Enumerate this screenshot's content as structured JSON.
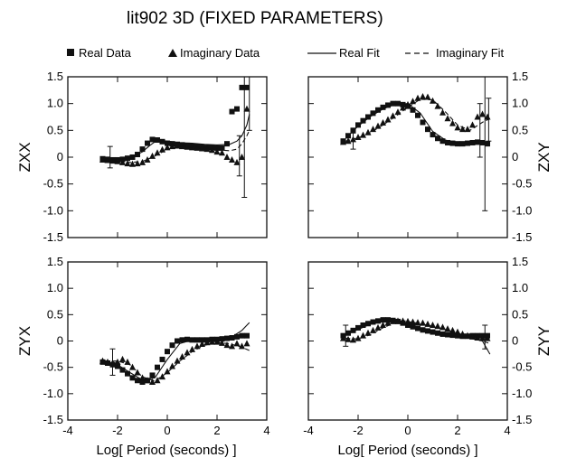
{
  "figure": {
    "title": "lit902 3D (FIXED PARAMETERS)",
    "legend": {
      "real_data": "Real Data",
      "imag_data": "Imaginary Data",
      "real_fit": "Real Fit",
      "imag_fit": "Imaginary Fit"
    },
    "xlabel": "Log[ Period (seconds) ]",
    "xticks": [
      -4,
      -2,
      0,
      2,
      4
    ],
    "yticks": [
      -1.5,
      -1.0,
      -0.5,
      0,
      0.5,
      1.0,
      1.5
    ],
    "xlim": [
      -4,
      4
    ],
    "ylim": [
      -1.5,
      1.5
    ]
  },
  "chart_data": [
    {
      "type": "scatter",
      "panel": "top-left",
      "ylabel": "ZXX",
      "series": [
        {
          "name": "Real Data",
          "marker": "square",
          "x": [
            -2.6,
            -2.4,
            -2.2,
            -2.0,
            -1.8,
            -1.6,
            -1.4,
            -1.2,
            -1.0,
            -0.8,
            -0.6,
            -0.4,
            -0.2,
            0.0,
            0.2,
            0.4,
            0.6,
            0.8,
            1.0,
            1.2,
            1.4,
            1.6,
            1.8,
            2.0,
            2.2,
            2.4,
            2.6,
            2.8,
            3.0,
            3.2
          ],
          "y": [
            -0.03,
            -0.04,
            -0.05,
            -0.05,
            -0.04,
            -0.02,
            0.0,
            0.05,
            0.15,
            0.26,
            0.33,
            0.32,
            0.29,
            0.26,
            0.25,
            0.24,
            0.23,
            0.22,
            0.21,
            0.2,
            0.19,
            0.18,
            0.18,
            0.17,
            0.17,
            0.25,
            0.85,
            0.9,
            1.3,
            1.3
          ]
        },
        {
          "name": "Imaginary Data",
          "marker": "triangle",
          "x": [
            -2.6,
            -2.4,
            -2.2,
            -2.0,
            -1.8,
            -1.6,
            -1.4,
            -1.2,
            -1.0,
            -0.8,
            -0.6,
            -0.4,
            -0.2,
            0.0,
            0.2,
            0.4,
            0.6,
            0.8,
            1.0,
            1.2,
            1.4,
            1.6,
            1.8,
            2.0,
            2.2,
            2.4,
            2.6,
            2.8,
            3.0,
            3.2
          ],
          "y": [
            -0.05,
            -0.06,
            -0.07,
            -0.08,
            -0.1,
            -0.12,
            -0.13,
            -0.12,
            -0.1,
            -0.05,
            0.02,
            0.08,
            0.14,
            0.18,
            0.2,
            0.21,
            0.2,
            0.19,
            0.18,
            0.17,
            0.16,
            0.15,
            0.13,
            0.1,
            0.08,
            0.0,
            -0.05,
            -0.1,
            0.0,
            0.9
          ]
        },
        {
          "name": "Real Fit",
          "line": "solid",
          "x": [
            -2.5,
            -2.0,
            -1.5,
            -1.0,
            -0.7,
            -0.4,
            0.0,
            0.5,
            1.0,
            1.5,
            2.0,
            2.5,
            2.8,
            3.0,
            3.2,
            3.3
          ],
          "y": [
            -0.02,
            -0.04,
            -0.02,
            0.1,
            0.22,
            0.32,
            0.3,
            0.27,
            0.26,
            0.24,
            0.23,
            0.24,
            0.3,
            0.4,
            0.6,
            0.8
          ]
        },
        {
          "name": "Imaginary Fit",
          "line": "dashed",
          "x": [
            -2.5,
            -2.0,
            -1.5,
            -1.0,
            -0.5,
            0.0,
            0.5,
            1.0,
            1.5,
            2.0,
            2.5,
            2.8,
            3.0,
            3.2,
            3.3
          ],
          "y": [
            -0.05,
            -0.07,
            -0.1,
            -0.08,
            0.02,
            0.15,
            0.2,
            0.19,
            0.17,
            0.14,
            0.12,
            0.15,
            0.25,
            0.4,
            0.5
          ]
        }
      ],
      "error_bars": [
        {
          "x": -2.3,
          "y": -0.05,
          "low": -0.2,
          "high": 0.2
        },
        {
          "x": 2.9,
          "y": 0.05,
          "low": -0.35,
          "high": 0.4
        },
        {
          "x": 3.1,
          "y": 0.5,
          "low": -0.75,
          "high": 1.5
        },
        {
          "x": 3.3,
          "y": 1.1,
          "low": 0.5,
          "high": 1.5
        }
      ]
    },
    {
      "type": "scatter",
      "panel": "top-right",
      "ylabel": "ZXY",
      "series": [
        {
          "name": "Real Data",
          "marker": "square",
          "x": [
            -2.6,
            -2.4,
            -2.2,
            -2.0,
            -1.8,
            -1.6,
            -1.4,
            -1.2,
            -1.0,
            -0.8,
            -0.6,
            -0.4,
            -0.2,
            0.0,
            0.2,
            0.4,
            0.6,
            0.8,
            1.0,
            1.2,
            1.4,
            1.6,
            1.8,
            2.0,
            2.2,
            2.4,
            2.6,
            2.8,
            3.0,
            3.2
          ],
          "y": [
            0.3,
            0.4,
            0.5,
            0.6,
            0.68,
            0.75,
            0.82,
            0.88,
            0.93,
            0.97,
            1.0,
            1.0,
            0.98,
            0.95,
            0.88,
            0.78,
            0.65,
            0.52,
            0.42,
            0.35,
            0.3,
            0.27,
            0.26,
            0.25,
            0.25,
            0.26,
            0.27,
            0.28,
            0.27,
            0.25
          ]
        },
        {
          "name": "Imaginary Data",
          "marker": "triangle",
          "x": [
            -2.6,
            -2.4,
            -2.2,
            -2.0,
            -1.8,
            -1.6,
            -1.4,
            -1.2,
            -1.0,
            -0.8,
            -0.6,
            -0.4,
            -0.2,
            0.0,
            0.2,
            0.4,
            0.6,
            0.8,
            1.0,
            1.2,
            1.4,
            1.6,
            1.8,
            2.0,
            2.2,
            2.4,
            2.6,
            2.8,
            3.0,
            3.2
          ],
          "y": [
            0.28,
            0.3,
            0.33,
            0.37,
            0.41,
            0.46,
            0.52,
            0.58,
            0.64,
            0.7,
            0.77,
            0.84,
            0.92,
            0.98,
            1.04,
            1.1,
            1.13,
            1.12,
            1.05,
            0.95,
            0.83,
            0.72,
            0.63,
            0.55,
            0.52,
            0.52,
            0.6,
            0.75,
            0.8,
            0.75
          ]
        },
        {
          "name": "Real Fit",
          "line": "solid",
          "x": [
            -2.5,
            -2.0,
            -1.5,
            -1.0,
            -0.5,
            0.0,
            0.5,
            1.0,
            1.5,
            2.0,
            2.5,
            3.0,
            3.3
          ],
          "y": [
            0.35,
            0.58,
            0.76,
            0.9,
            0.99,
            1.0,
            0.82,
            0.48,
            0.32,
            0.27,
            0.27,
            0.28,
            0.27
          ]
        },
        {
          "name": "Imaginary Fit",
          "line": "dashed",
          "x": [
            -2.5,
            -2.0,
            -1.5,
            -1.0,
            -0.5,
            0.0,
            0.5,
            1.0,
            1.5,
            2.0,
            2.5,
            3.0,
            3.3
          ],
          "y": [
            0.3,
            0.36,
            0.46,
            0.6,
            0.76,
            0.93,
            1.08,
            1.07,
            0.85,
            0.6,
            0.5,
            0.65,
            0.72
          ]
        }
      ],
      "error_bars": [
        {
          "x": -2.2,
          "y": 0.3,
          "low": 0.15,
          "high": 0.45
        },
        {
          "x": 2.9,
          "y": 0.6,
          "low": 0.0,
          "high": 1.0
        },
        {
          "x": 3.1,
          "y": 0.5,
          "low": -1.0,
          "high": 1.5
        },
        {
          "x": 3.25,
          "y": 0.75,
          "low": 0.3,
          "high": 1.1
        }
      ]
    },
    {
      "type": "scatter",
      "panel": "bottom-left",
      "ylabel": "ZYX",
      "series": [
        {
          "name": "Real Data",
          "marker": "square",
          "x": [
            -2.6,
            -2.4,
            -2.2,
            -2.0,
            -1.8,
            -1.6,
            -1.4,
            -1.2,
            -1.0,
            -0.8,
            -0.6,
            -0.4,
            -0.2,
            0.0,
            0.2,
            0.4,
            0.6,
            0.8,
            1.0,
            1.2,
            1.4,
            1.6,
            1.8,
            2.0,
            2.2,
            2.4,
            2.6,
            2.8,
            3.0,
            3.2
          ],
          "y": [
            -0.4,
            -0.42,
            -0.45,
            -0.48,
            -0.55,
            -0.62,
            -0.7,
            -0.75,
            -0.78,
            -0.75,
            -0.65,
            -0.5,
            -0.35,
            -0.2,
            -0.08,
            0.0,
            0.02,
            0.03,
            0.02,
            0.02,
            0.02,
            0.02,
            0.03,
            0.03,
            0.04,
            0.05,
            0.06,
            0.08,
            0.1,
            0.1
          ]
        },
        {
          "name": "Imaginary Data",
          "marker": "triangle",
          "x": [
            -2.6,
            -2.4,
            -2.2,
            -2.0,
            -1.8,
            -1.6,
            -1.4,
            -1.2,
            -1.0,
            -0.8,
            -0.6,
            -0.4,
            -0.2,
            0.0,
            0.2,
            0.4,
            0.6,
            0.8,
            1.0,
            1.2,
            1.4,
            1.6,
            1.8,
            2.0,
            2.2,
            2.4,
            2.6,
            2.8,
            3.0,
            3.2
          ],
          "y": [
            -0.38,
            -0.4,
            -0.42,
            -0.4,
            -0.35,
            -0.4,
            -0.5,
            -0.6,
            -0.7,
            -0.75,
            -0.78,
            -0.75,
            -0.68,
            -0.58,
            -0.48,
            -0.38,
            -0.3,
            -0.22,
            -0.16,
            -0.1,
            -0.06,
            -0.03,
            -0.02,
            -0.02,
            -0.04,
            -0.08,
            -0.1,
            -0.05,
            -0.1,
            -0.05
          ]
        },
        {
          "name": "Real Fit",
          "line": "solid",
          "x": [
            -2.5,
            -2.0,
            -1.5,
            -1.0,
            -0.5,
            0.0,
            0.5,
            1.0,
            1.5,
            2.0,
            2.5,
            3.0,
            3.3
          ],
          "y": [
            -0.4,
            -0.45,
            -0.6,
            -0.74,
            -0.7,
            -0.35,
            -0.05,
            0.02,
            0.02,
            0.02,
            0.05,
            0.2,
            0.35
          ]
        },
        {
          "name": "Imaginary Fit",
          "line": "dashed",
          "x": [
            -2.5,
            -2.0,
            -1.5,
            -1.0,
            -0.5,
            0.0,
            0.5,
            1.0,
            1.5,
            2.0,
            2.5,
            3.0,
            3.3
          ],
          "y": [
            -0.38,
            -0.38,
            -0.45,
            -0.68,
            -0.76,
            -0.6,
            -0.38,
            -0.2,
            -0.08,
            -0.03,
            -0.05,
            -0.12,
            -0.18
          ]
        }
      ],
      "error_bars": [
        {
          "x": -2.2,
          "y": -0.4,
          "low": -0.65,
          "high": -0.15
        }
      ]
    },
    {
      "type": "scatter",
      "panel": "bottom-right",
      "ylabel": "ZYY",
      "series": [
        {
          "name": "Real Data",
          "marker": "square",
          "x": [
            -2.6,
            -2.4,
            -2.2,
            -2.0,
            -1.8,
            -1.6,
            -1.4,
            -1.2,
            -1.0,
            -0.8,
            -0.6,
            -0.4,
            -0.2,
            0.0,
            0.2,
            0.4,
            0.6,
            0.8,
            1.0,
            1.2,
            1.4,
            1.6,
            1.8,
            2.0,
            2.2,
            2.4,
            2.6,
            2.8,
            3.0,
            3.2
          ],
          "y": [
            0.1,
            0.15,
            0.2,
            0.25,
            0.3,
            0.33,
            0.36,
            0.38,
            0.4,
            0.4,
            0.39,
            0.37,
            0.34,
            0.3,
            0.27,
            0.24,
            0.21,
            0.19,
            0.17,
            0.15,
            0.13,
            0.12,
            0.11,
            0.1,
            0.09,
            0.09,
            0.1,
            0.1,
            0.1,
            0.1
          ]
        },
        {
          "name": "Imaginary Data",
          "marker": "triangle",
          "x": [
            -2.6,
            -2.4,
            -2.2,
            -2.0,
            -1.8,
            -1.6,
            -1.4,
            -1.2,
            -1.0,
            -0.8,
            -0.6,
            -0.4,
            -0.2,
            0.0,
            0.2,
            0.4,
            0.6,
            0.8,
            1.0,
            1.2,
            1.4,
            1.6,
            1.8,
            2.0,
            2.2,
            2.4,
            2.6,
            2.8,
            3.0,
            3.2
          ],
          "y": [
            0.05,
            0.03,
            0.02,
            0.05,
            0.1,
            0.15,
            0.2,
            0.25,
            0.3,
            0.34,
            0.37,
            0.38,
            0.38,
            0.37,
            0.36,
            0.35,
            0.34,
            0.32,
            0.3,
            0.28,
            0.26,
            0.23,
            0.2,
            0.17,
            0.13,
            0.1,
            0.08,
            0.06,
            0.05,
            0.05
          ]
        },
        {
          "name": "Real Fit",
          "line": "solid",
          "x": [
            -2.5,
            -2.0,
            -1.5,
            -1.0,
            -0.5,
            0.0,
            0.5,
            1.0,
            1.5,
            2.0,
            2.5,
            3.0,
            3.3
          ],
          "y": [
            0.12,
            0.22,
            0.32,
            0.38,
            0.38,
            0.3,
            0.22,
            0.16,
            0.12,
            0.08,
            0.05,
            0.0,
            -0.25
          ]
        },
        {
          "name": "Imaginary Fit",
          "line": "dashed",
          "x": [
            -2.5,
            -2.0,
            -1.5,
            -1.0,
            -0.5,
            0.0,
            0.5,
            1.0,
            1.5,
            2.0,
            2.5,
            3.0,
            3.3
          ],
          "y": [
            0.05,
            0.04,
            0.12,
            0.25,
            0.35,
            0.37,
            0.33,
            0.28,
            0.22,
            0.14,
            0.08,
            0.0,
            -0.05
          ]
        }
      ],
      "error_bars": [
        {
          "x": -2.5,
          "y": 0.1,
          "low": -0.1,
          "high": 0.3
        },
        {
          "x": 3.1,
          "y": 0.1,
          "low": -0.15,
          "high": 0.3
        }
      ]
    }
  ]
}
